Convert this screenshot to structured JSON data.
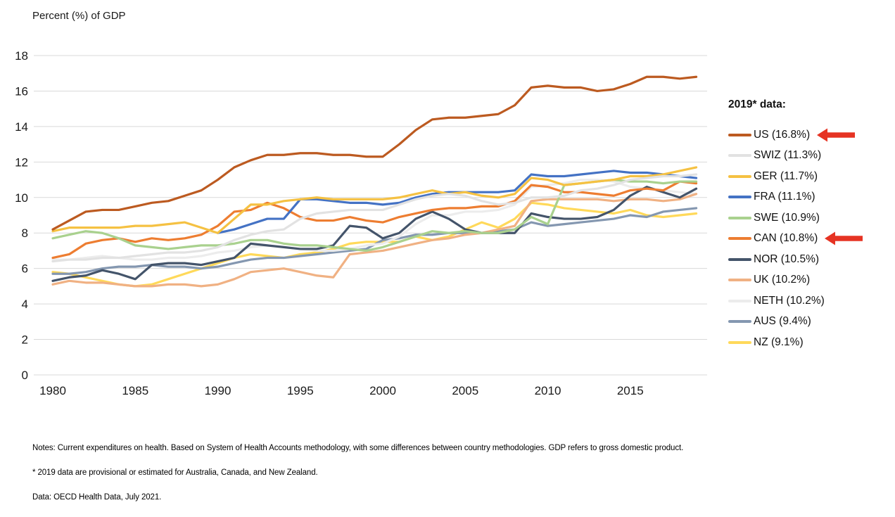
{
  "title": "Percent (%) of GDP",
  "notes": [
    "Notes: Current expenditures on health. Based on System of Health Accounts methodology, with some differences between country methodologies. GDP refers to gross domestic product.",
    "* 2019 data are provisional or estimated for Australia, Canada, and New Zealand.",
    "Data: OECD Health Data, July 2021."
  ],
  "chart_data": {
    "type": "line",
    "title": "Percent (%) of GDP",
    "xlabel": "",
    "ylabel": "Percent (%) of GDP",
    "x_start": 1980,
    "x_end": 2019,
    "x_ticks": [
      1980,
      1985,
      1990,
      1995,
      2000,
      2005,
      2010,
      2015
    ],
    "y_ticks": [
      0,
      2,
      4,
      6,
      8,
      10,
      12,
      14,
      16,
      18
    ],
    "ylim": [
      0,
      18
    ],
    "grid": true,
    "gridline_color": "#d9d9d9",
    "legend_position": "right",
    "legend_title": "2019* data:",
    "arrow_color": "#E63323",
    "series": [
      {
        "name": "US",
        "label": "US (16.8%)",
        "value_2019": 16.8,
        "color": "#BC5A20",
        "arrow": true,
        "values": [
          8.2,
          8.7,
          9.2,
          9.3,
          9.3,
          9.5,
          9.7,
          9.8,
          10.1,
          10.4,
          11.0,
          11.7,
          12.1,
          12.4,
          12.4,
          12.5,
          12.5,
          12.4,
          12.4,
          12.3,
          12.3,
          13.0,
          13.8,
          14.4,
          14.5,
          14.5,
          14.6,
          14.7,
          15.2,
          16.2,
          16.3,
          16.2,
          16.2,
          16.0,
          16.1,
          16.4,
          16.8,
          16.8,
          16.7,
          16.8
        ]
      },
      {
        "name": "SWIZ",
        "label": "SWIZ (11.3%)",
        "value_2019": 11.3,
        "color": "#E2E2E2",
        "arrow": false,
        "values": [
          6.4,
          6.5,
          6.5,
          6.6,
          6.6,
          6.7,
          6.8,
          6.9,
          6.9,
          7.0,
          7.2,
          7.6,
          7.9,
          8.1,
          8.2,
          8.8,
          9.1,
          9.2,
          9.3,
          9.3,
          9.3,
          9.6,
          9.9,
          10.1,
          10.2,
          10.1,
          9.8,
          9.6,
          9.7,
          10.0,
          10.0,
          10.1,
          10.4,
          10.5,
          10.7,
          11.0,
          11.1,
          11.2,
          11.2,
          11.3
        ]
      },
      {
        "name": "GER",
        "label": "GER (11.7%)",
        "value_2019": 11.7,
        "color": "#F5C142",
        "arrow": false,
        "values": [
          8.1,
          8.3,
          8.3,
          8.3,
          8.3,
          8.4,
          8.4,
          8.5,
          8.6,
          8.3,
          8.0,
          8.8,
          9.6,
          9.6,
          9.8,
          9.9,
          10.0,
          9.9,
          9.9,
          9.9,
          9.9,
          10.0,
          10.2,
          10.4,
          10.2,
          10.3,
          10.1,
          10.0,
          10.2,
          11.1,
          11.0,
          10.7,
          10.8,
          10.9,
          11.0,
          11.2,
          11.2,
          11.3,
          11.5,
          11.7
        ]
      },
      {
        "name": "FRA",
        "label": "FRA (11.1%)",
        "value_2019": 11.1,
        "color": "#4472C4",
        "arrow": false,
        "values": [
          null,
          null,
          null,
          null,
          null,
          null,
          null,
          null,
          null,
          null,
          8.0,
          8.2,
          8.5,
          8.8,
          8.8,
          9.9,
          9.9,
          9.8,
          9.7,
          9.7,
          9.6,
          9.7,
          10.0,
          10.2,
          10.3,
          10.3,
          10.3,
          10.3,
          10.4,
          11.3,
          11.2,
          11.2,
          11.3,
          11.4,
          11.5,
          11.4,
          11.4,
          11.3,
          11.2,
          11.1
        ]
      },
      {
        "name": "SWE",
        "label": "SWE (10.9%)",
        "value_2019": 10.9,
        "color": "#A9D18E",
        "arrow": false,
        "values": [
          7.7,
          7.9,
          8.1,
          8.0,
          7.7,
          7.3,
          7.2,
          7.1,
          7.2,
          7.3,
          7.3,
          7.4,
          7.6,
          7.6,
          7.4,
          7.3,
          7.3,
          7.2,
          7.1,
          7.0,
          7.2,
          7.5,
          7.8,
          8.1,
          8.0,
          8.1,
          8.0,
          8.0,
          8.2,
          8.9,
          8.5,
          10.7,
          10.8,
          10.9,
          11.0,
          10.9,
          10.9,
          10.8,
          10.9,
          10.9
        ]
      },
      {
        "name": "CAN",
        "label": "CAN (10.8%)",
        "value_2019": 10.8,
        "color": "#ED7D31",
        "arrow": true,
        "values": [
          6.6,
          6.8,
          7.4,
          7.6,
          7.7,
          7.5,
          7.7,
          7.6,
          7.7,
          7.9,
          8.4,
          9.2,
          9.3,
          9.7,
          9.4,
          8.9,
          8.7,
          8.7,
          8.9,
          8.7,
          8.6,
          8.9,
          9.1,
          9.3,
          9.4,
          9.4,
          9.5,
          9.5,
          9.8,
          10.7,
          10.6,
          10.3,
          10.3,
          10.2,
          10.1,
          10.4,
          10.5,
          10.4,
          10.9,
          10.8
        ]
      },
      {
        "name": "NOR",
        "label": "NOR (10.5%)",
        "value_2019": 10.5,
        "color": "#44546A",
        "arrow": false,
        "values": [
          5.3,
          5.5,
          5.6,
          5.9,
          5.7,
          5.4,
          6.2,
          6.3,
          6.3,
          6.2,
          6.4,
          6.6,
          7.4,
          7.3,
          7.2,
          7.1,
          7.1,
          7.3,
          8.4,
          8.3,
          7.7,
          8.0,
          8.8,
          9.2,
          8.8,
          8.2,
          8.0,
          8.0,
          8.0,
          9.1,
          8.9,
          8.8,
          8.8,
          8.9,
          9.3,
          10.1,
          10.6,
          10.3,
          10.0,
          10.5
        ]
      },
      {
        "name": "UK",
        "label": "UK (10.2%)",
        "value_2019": 10.2,
        "color": "#F0B183",
        "arrow": false,
        "values": [
          5.1,
          5.3,
          5.2,
          5.2,
          5.1,
          5.0,
          5.0,
          5.1,
          5.1,
          5.0,
          5.1,
          5.4,
          5.8,
          5.9,
          6.0,
          5.8,
          5.6,
          5.5,
          6.8,
          6.9,
          7.0,
          7.2,
          7.4,
          7.6,
          7.7,
          7.9,
          8.0,
          8.2,
          8.4,
          9.8,
          9.9,
          9.9,
          9.9,
          9.9,
          9.8,
          9.9,
          9.9,
          9.8,
          9.9,
          10.2
        ]
      },
      {
        "name": "NETH",
        "label": "NETH (10.2%)",
        "value_2019": 10.2,
        "color": "#ECECEC",
        "arrow": false,
        "values": [
          6.5,
          6.5,
          6.6,
          6.7,
          6.6,
          6.5,
          6.5,
          6.6,
          6.6,
          6.7,
          6.9,
          7.0,
          7.2,
          7.3,
          7.2,
          7.1,
          7.0,
          7.0,
          7.1,
          7.3,
          7.4,
          7.8,
          8.5,
          9.0,
          9.0,
          9.2,
          9.2,
          9.3,
          9.6,
          10.6,
          10.7,
          10.8,
          11.0,
          11.0,
          10.9,
          10.6,
          10.5,
          10.4,
          10.3,
          10.2
        ]
      },
      {
        "name": "AUS",
        "label": "AUS (9.4%)",
        "value_2019": 9.4,
        "color": "#8497B0",
        "arrow": false,
        "values": [
          5.7,
          5.7,
          5.8,
          6.0,
          6.1,
          6.1,
          6.2,
          6.1,
          6.1,
          6.0,
          6.1,
          6.3,
          6.5,
          6.6,
          6.6,
          6.7,
          6.8,
          6.9,
          7.0,
          7.1,
          7.6,
          7.7,
          7.9,
          7.9,
          8.0,
          8.0,
          8.0,
          8.1,
          8.2,
          8.6,
          8.4,
          8.5,
          8.6,
          8.7,
          8.8,
          9.0,
          8.9,
          9.2,
          9.3,
          9.4
        ]
      },
      {
        "name": "NZ",
        "label": "NZ (9.1%)",
        "value_2019": 9.1,
        "color": "#FFD95A",
        "arrow": false,
        "values": [
          5.8,
          5.7,
          5.5,
          5.3,
          5.1,
          5.0,
          5.1,
          5.4,
          5.7,
          6.0,
          6.3,
          6.6,
          6.8,
          6.7,
          6.6,
          6.8,
          6.9,
          7.1,
          7.4,
          7.5,
          7.5,
          7.5,
          7.8,
          7.6,
          7.8,
          8.2,
          8.6,
          8.3,
          8.8,
          9.7,
          9.6,
          9.4,
          9.3,
          9.2,
          9.1,
          9.3,
          9.0,
          8.9,
          9.0,
          9.1
        ]
      }
    ]
  }
}
